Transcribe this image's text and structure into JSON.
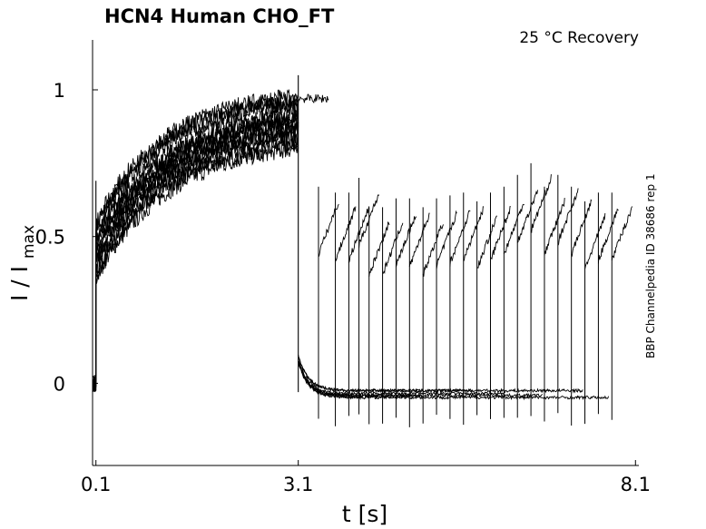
{
  "chart_data": {
    "type": "line",
    "title": "HCN4  Human  CHO_FT",
    "subtitle": "25 °C  Recovery",
    "side_note": "BBP Channelpedia ID 38686 rep 1",
    "xlabel": "t [s]",
    "ylabel_main": "I / I",
    "ylabel_sub": "max",
    "x_ticks": [
      0.1,
      3.1,
      8.1
    ],
    "x_tick_labels": [
      "0.1",
      "3.1",
      "8.1"
    ],
    "y_ticks": [
      0,
      0.5,
      1
    ],
    "y_tick_labels": [
      "0",
      "0.5",
      "1"
    ],
    "xlim": [
      0.05,
      8.15
    ],
    "ylim": [
      -0.28,
      1.17
    ],
    "grid": false,
    "line_color": "#000000",
    "conditioning_pulse": {
      "start": 0.1,
      "end": 3.1,
      "initial_levels": [
        0.35,
        0.55
      ],
      "final_levels": [
        0.82,
        1.0
      ]
    },
    "test_pulse": {
      "durations": [
        0.3
      ],
      "start_times": [
        3.4,
        3.65,
        3.85,
        4.0,
        4.15,
        4.35,
        4.55,
        4.75,
        4.95,
        5.15,
        5.35,
        5.55,
        5.75,
        5.95,
        6.15,
        6.35,
        6.55,
        6.75,
        6.95,
        7.15,
        7.35,
        7.55,
        7.75
      ],
      "peak_values": [
        0.62,
        0.6,
        0.6,
        0.65,
        0.55,
        0.55,
        0.58,
        0.58,
        0.55,
        0.58,
        0.59,
        0.6,
        0.57,
        0.6,
        0.62,
        0.66,
        0.7,
        0.62,
        0.66,
        0.62,
        0.57,
        0.6,
        0.6
      ]
    },
    "tail_baseline": 0.0
  }
}
